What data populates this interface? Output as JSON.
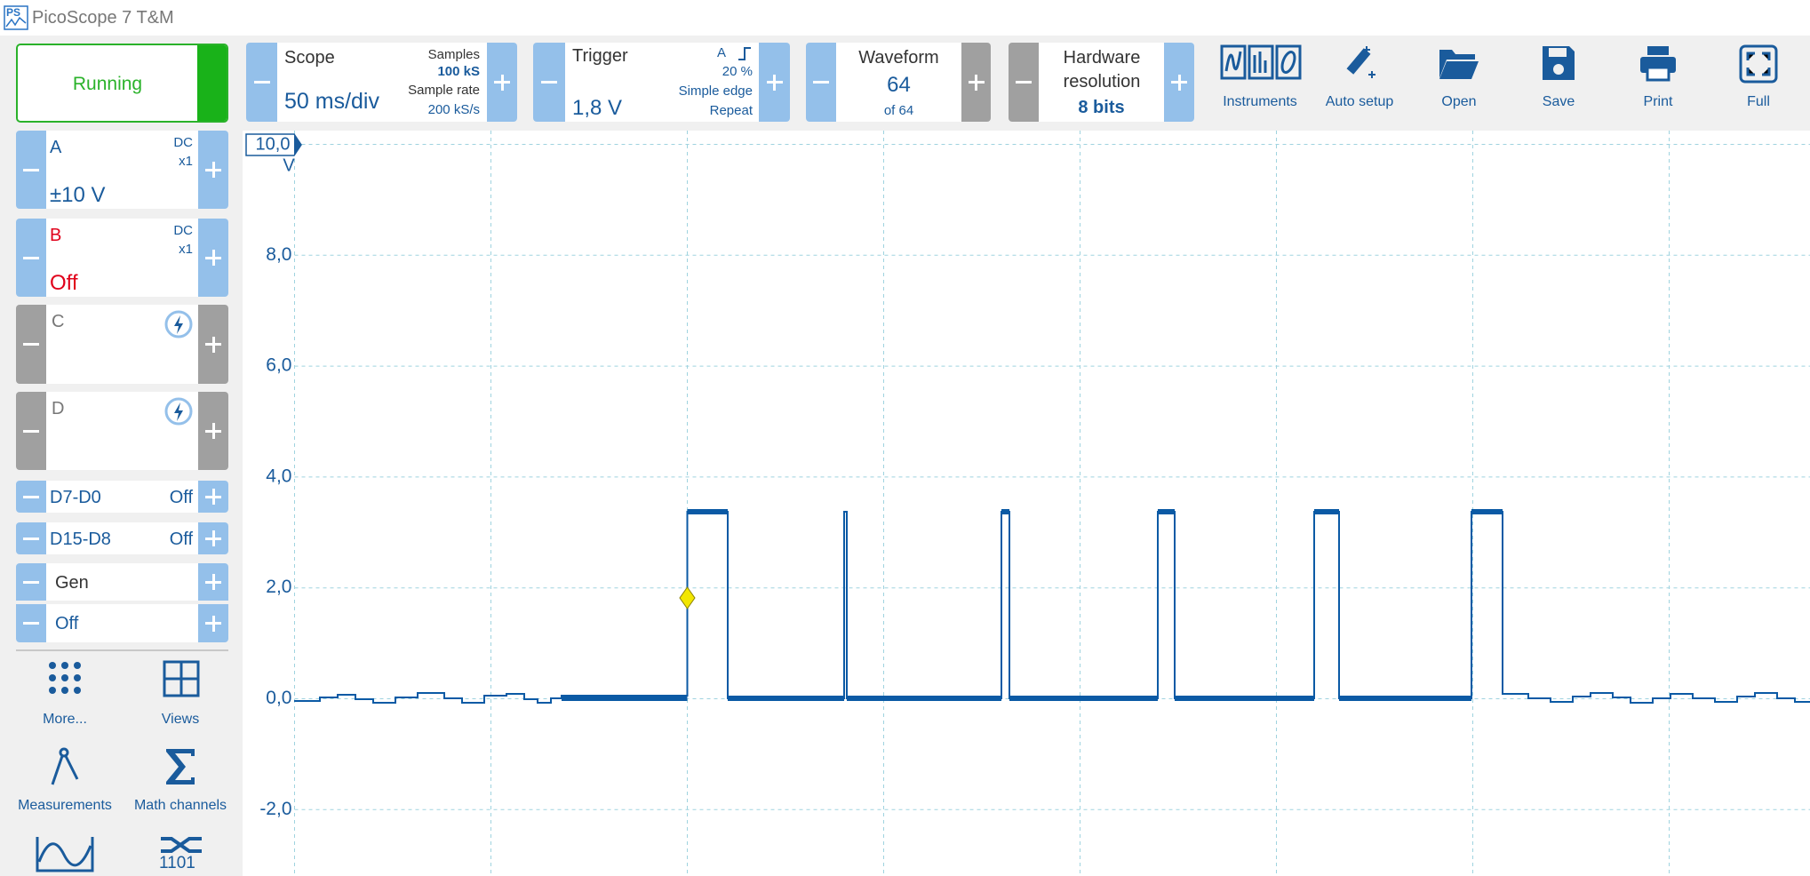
{
  "app": {
    "logo": "PS",
    "title": "PicoScope 7 T&M"
  },
  "run": {
    "label": "Running"
  },
  "scope": {
    "label": "Scope",
    "timebase": "50 ms/div",
    "samples_label": "Samples",
    "samples": "100 kS",
    "rate_label": "Sample rate",
    "rate": "200 kS/s"
  },
  "trigger": {
    "label": "Trigger",
    "level": "1,8 V",
    "channel": "A",
    "position": "20 %",
    "type": "Simple edge",
    "mode": "Repeat"
  },
  "waveform": {
    "label": "Waveform",
    "current": "64",
    "total": "of 64"
  },
  "resolution": {
    "label": "Hardware resolution",
    "value": "8 bits"
  },
  "toolbar": [
    "Instruments",
    "Auto setup",
    "Open",
    "Save",
    "Print",
    "Full"
  ],
  "channels": [
    {
      "name": "A",
      "coupling": "DC",
      "probe": "x1",
      "range": "±10 V"
    },
    {
      "name": "B",
      "coupling": "DC",
      "probe": "x1",
      "range": "Off"
    },
    {
      "name": "C"
    },
    {
      "name": "D"
    }
  ],
  "digital": [
    {
      "name": "D7-D0",
      "state": "Off"
    },
    {
      "name": "D15-D8",
      "state": "Off"
    }
  ],
  "generator": {
    "name": "Gen",
    "state": "Off"
  },
  "tools": [
    "More...",
    "Views",
    "Measurements",
    "Math channels",
    "1101"
  ],
  "axis": {
    "top": "10,0",
    "unit": "V",
    "ticks": [
      "8,0",
      "6,0",
      "4,0",
      "2,0",
      "0,0",
      "-2,0"
    ]
  }
}
